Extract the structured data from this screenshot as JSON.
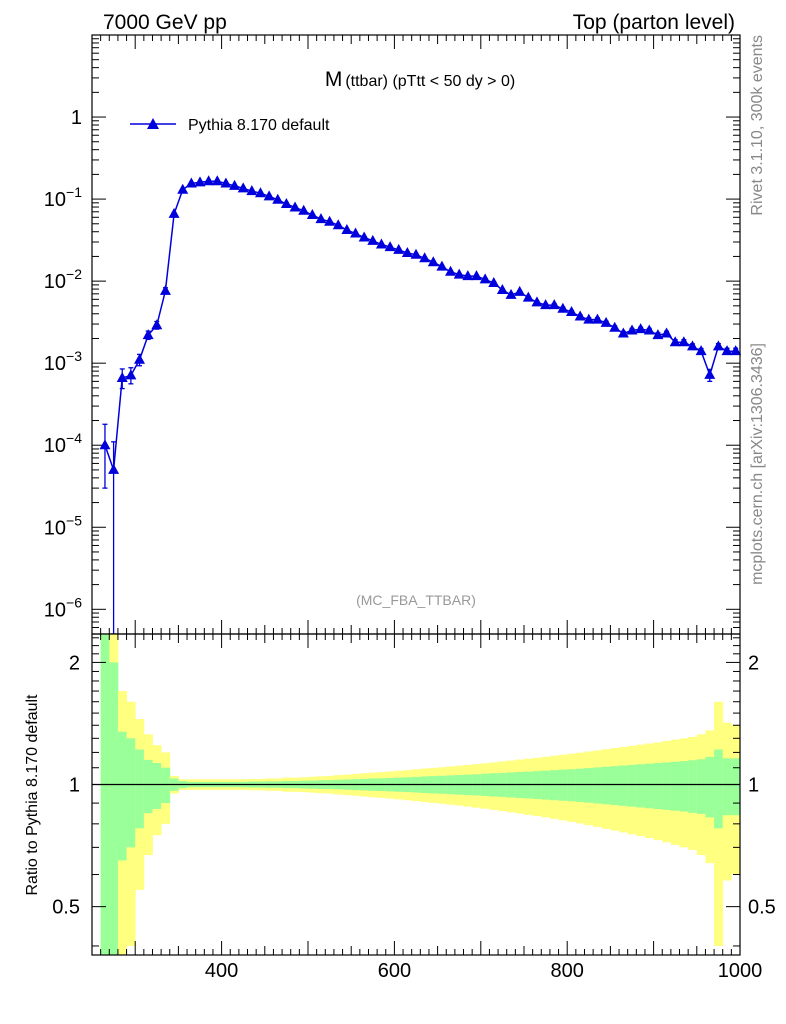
{
  "header": {
    "left": "7000 GeV pp",
    "right": "Top (parton level)"
  },
  "side_labels": {
    "rivet": "Rivet 3.1.10,  300k events",
    "mcplots": "mcplots.cern.ch [arXiv:1306.3436]"
  },
  "colors": {
    "series": "#0000dd",
    "band_outer": "#ffff80",
    "band_inner": "#99ff99",
    "axis": "#000000",
    "watermark": "#999999",
    "side_text": "#888888"
  },
  "chart_data": [
    {
      "type": "line",
      "panel": "main",
      "title": "M (ttbar) (pTtt < 50 dy > 0)",
      "title_main": "M",
      "title_sub": "(ttbar) (pTtt < 50 dy > 0)",
      "watermark": "(MC_FBA_TTBAR)",
      "xlabel": "",
      "ylabel": "",
      "xlim": [
        250,
        1000
      ],
      "ylim": [
        5e-07,
        10
      ],
      "yscale": "log",
      "y_ticks": [
        {
          "value": 1,
          "label": "1",
          "exp": ""
        },
        {
          "value": 0.1,
          "label": "10",
          "exp": "−1"
        },
        {
          "value": 0.01,
          "label": "10",
          "exp": "−2"
        },
        {
          "value": 0.001,
          "label": "10",
          "exp": "−3"
        },
        {
          "value": 0.0001,
          "label": "10",
          "exp": "−4"
        },
        {
          "value": 1e-05,
          "label": "10",
          "exp": "−5"
        },
        {
          "value": 1e-06,
          "label": "10",
          "exp": "−6"
        }
      ],
      "legend_position": "top-left",
      "series": [
        {
          "name": "Pythia 8.170 default",
          "marker": "triangle",
          "x": [
            265,
            275,
            285,
            295,
            305,
            315,
            325,
            335,
            345,
            355,
            365,
            375,
            385,
            395,
            405,
            415,
            425,
            435,
            445,
            455,
            465,
            475,
            485,
            495,
            505,
            515,
            525,
            535,
            545,
            555,
            565,
            575,
            585,
            595,
            605,
            615,
            625,
            635,
            645,
            655,
            665,
            675,
            685,
            695,
            705,
            715,
            725,
            735,
            745,
            755,
            765,
            775,
            785,
            795,
            805,
            815,
            825,
            835,
            845,
            855,
            865,
            875,
            885,
            895,
            905,
            915,
            925,
            935,
            945,
            955,
            965,
            975,
            985,
            995
          ],
          "y": [
            0.0001,
            5e-05,
            0.00066,
            0.00071,
            0.0011,
            0.0022,
            0.0029,
            0.0076,
            0.066,
            0.13,
            0.155,
            0.16,
            0.165,
            0.165,
            0.155,
            0.145,
            0.135,
            0.125,
            0.118,
            0.108,
            0.098,
            0.087,
            0.079,
            0.072,
            0.064,
            0.057,
            0.053,
            0.048,
            0.042,
            0.038,
            0.034,
            0.031,
            0.028,
            0.026,
            0.024,
            0.022,
            0.021,
            0.019,
            0.017,
            0.015,
            0.013,
            0.012,
            0.0115,
            0.0115,
            0.0105,
            0.0095,
            0.0078,
            0.0068,
            0.0074,
            0.0063,
            0.0055,
            0.0051,
            0.0051,
            0.0046,
            0.0042,
            0.0037,
            0.0034,
            0.0034,
            0.0031,
            0.0027,
            0.0023,
            0.0025,
            0.0026,
            0.0025,
            0.0022,
            0.0023,
            0.0018,
            0.0018,
            0.0016,
            0.0014,
            0.00072,
            0.0016,
            0.0014,
            0.0014
          ],
          "yerr_low": [
            7e-05,
            5e-05,
            0.00017,
            0.00015,
            0.00017,
            0.00025,
            0.0003,
            0.0006,
            0.002,
            0.002,
            0.002,
            0.002,
            0.002,
            0.002,
            0.002,
            0.002,
            0.002,
            0.002,
            0.002,
            0.002,
            0.0015,
            0.0015,
            0.0013,
            0.0012,
            0.0011,
            0.001,
            0.0009,
            0.0008,
            0.0008,
            0.0007,
            0.0007,
            0.0006,
            0.0006,
            0.0005,
            0.0005,
            0.0005,
            0.0005,
            0.0004,
            0.0004,
            0.0004,
            0.0003,
            0.0003,
            0.0003,
            0.0003,
            0.0003,
            0.0003,
            0.0002,
            0.0002,
            0.0002,
            0.0002,
            0.0002,
            0.0002,
            0.0002,
            0.0002,
            0.0002,
            0.00018,
            0.00017,
            0.00017,
            0.00016,
            0.00015,
            0.00014,
            0.00015,
            0.00015,
            0.00015,
            0.00014,
            0.00015,
            0.00013,
            0.00013,
            0.00012,
            0.00011,
            0.00012,
            0.00013,
            0.00012,
            0.00012
          ],
          "yerr_high": [
            8e-05,
            6e-05,
            0.00019,
            0.00017,
            0.00018,
            0.00026,
            0.00032,
            0.0007,
            0.002,
            0.002,
            0.002,
            0.002,
            0.002,
            0.002,
            0.002,
            0.002,
            0.002,
            0.002,
            0.002,
            0.002,
            0.0015,
            0.0015,
            0.0013,
            0.0012,
            0.0011,
            0.001,
            0.0009,
            0.0008,
            0.0008,
            0.0007,
            0.0007,
            0.0006,
            0.0006,
            0.0005,
            0.0005,
            0.0005,
            0.0005,
            0.0004,
            0.0004,
            0.0004,
            0.0003,
            0.0003,
            0.0003,
            0.0003,
            0.0003,
            0.0003,
            0.0002,
            0.0002,
            0.0002,
            0.0002,
            0.0002,
            0.0002,
            0.0002,
            0.0002,
            0.0002,
            0.00018,
            0.00017,
            0.00017,
            0.00016,
            0.00015,
            0.00014,
            0.00015,
            0.00015,
            0.00015,
            0.00014,
            0.00015,
            0.00013,
            0.00013,
            0.00012,
            0.00011,
            0.00012,
            0.00013,
            0.00012,
            0.00012
          ]
        }
      ]
    },
    {
      "type": "area",
      "panel": "ratio",
      "ylabel": "Ratio to Pythia 8.170 default",
      "xlabel": "",
      "xlim": [
        250,
        1000
      ],
      "ylim": [
        0.38,
        2.35
      ],
      "yscale": "log",
      "x_ticks": [
        400,
        600,
        800,
        1000
      ],
      "y_ticks": [
        {
          "value": 0.5,
          "label": "0.5"
        },
        {
          "value": 1,
          "label": "1"
        },
        {
          "value": 2,
          "label": "2"
        }
      ],
      "reference": 1,
      "bin_edges": [
        260,
        270,
        280,
        290,
        300,
        310,
        320,
        330,
        340,
        350,
        360,
        370,
        380,
        390,
        400,
        410,
        420,
        430,
        440,
        450,
        460,
        470,
        480,
        490,
        500,
        510,
        520,
        530,
        540,
        550,
        560,
        570,
        580,
        590,
        600,
        610,
        620,
        630,
        640,
        650,
        660,
        670,
        680,
        690,
        700,
        710,
        720,
        730,
        740,
        750,
        760,
        770,
        780,
        790,
        800,
        810,
        820,
        830,
        840,
        850,
        860,
        870,
        880,
        890,
        900,
        910,
        920,
        930,
        940,
        950,
        960,
        970,
        980,
        990,
        1000
      ],
      "band_inner_half": [
        1.6,
        1.0,
        0.35,
        0.3,
        0.22,
        0.15,
        0.13,
        0.1,
        0.035,
        0.02,
        0.015,
        0.015,
        0.015,
        0.015,
        0.015,
        0.015,
        0.015,
        0.017,
        0.017,
        0.018,
        0.018,
        0.02,
        0.02,
        0.022,
        0.023,
        0.025,
        0.025,
        0.027,
        0.029,
        0.031,
        0.033,
        0.035,
        0.036,
        0.038,
        0.04,
        0.042,
        0.044,
        0.047,
        0.049,
        0.051,
        0.053,
        0.056,
        0.058,
        0.06,
        0.063,
        0.066,
        0.068,
        0.071,
        0.074,
        0.076,
        0.079,
        0.082,
        0.085,
        0.088,
        0.091,
        0.094,
        0.098,
        0.102,
        0.106,
        0.11,
        0.114,
        0.118,
        0.122,
        0.126,
        0.13,
        0.134,
        0.138,
        0.142,
        0.148,
        0.154,
        0.17,
        0.22,
        0.16,
        0.16
      ],
      "band_outer_half": [
        3.5,
        2.5,
        0.7,
        0.6,
        0.45,
        0.33,
        0.25,
        0.2,
        0.05,
        0.03,
        0.03,
        0.03,
        0.03,
        0.03,
        0.03,
        0.03,
        0.03,
        0.032,
        0.032,
        0.035,
        0.035,
        0.04,
        0.04,
        0.042,
        0.045,
        0.048,
        0.05,
        0.055,
        0.058,
        0.062,
        0.066,
        0.07,
        0.073,
        0.077,
        0.081,
        0.085,
        0.09,
        0.095,
        0.099,
        0.103,
        0.108,
        0.113,
        0.118,
        0.123,
        0.128,
        0.134,
        0.14,
        0.146,
        0.152,
        0.158,
        0.164,
        0.17,
        0.177,
        0.184,
        0.191,
        0.198,
        0.206,
        0.214,
        0.222,
        0.23,
        0.238,
        0.246,
        0.254,
        0.262,
        0.27,
        0.28,
        0.29,
        0.3,
        0.31,
        0.33,
        0.36,
        0.6,
        0.42,
        0.4
      ]
    }
  ]
}
